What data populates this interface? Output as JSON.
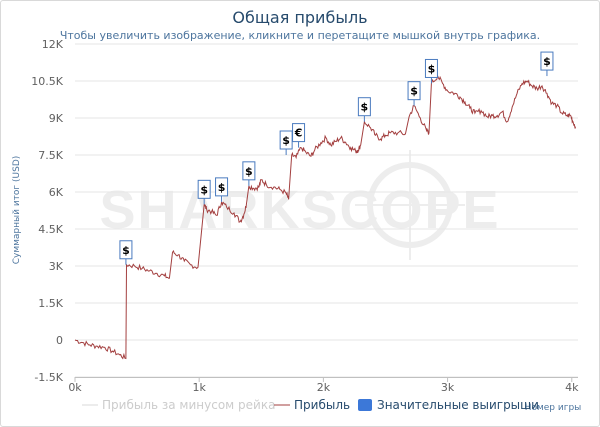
{
  "title": "Общая прибыль",
  "subtitle": "Чтобы увеличить изображение, кликните и перетащите мышкой внутрь графика.",
  "watermark": "SHARKSCOPE",
  "colors": {
    "profit": "#a33f3f",
    "rake": "#d9d9d9",
    "wins": "#3c78d8",
    "grid": "#e6e6e6",
    "axis": "#c0c0c0",
    "marker_border": "#4a7bbf"
  },
  "chart_data": {
    "type": "line",
    "title": "Общая прибыль",
    "xlabel": "Номер игры",
    "ylabel": "Суммарный итог (USD)",
    "xlim": [
      0,
      4050
    ],
    "ylim": [
      -1500,
      12000
    ],
    "x_ticks": [
      {
        "value": 0,
        "label": "0k"
      },
      {
        "value": 1000,
        "label": "1k"
      },
      {
        "value": 2000,
        "label": "2k"
      },
      {
        "value": 3000,
        "label": "3k"
      },
      {
        "value": 4000,
        "label": "4k"
      }
    ],
    "y_ticks": [
      {
        "value": -1500,
        "label": "-1.5K"
      },
      {
        "value": 0,
        "label": "0"
      },
      {
        "value": 1500,
        "label": "1.5K"
      },
      {
        "value": 3000,
        "label": "3K"
      },
      {
        "value": 4500,
        "label": "4.5K"
      },
      {
        "value": 6000,
        "label": "6K"
      },
      {
        "value": 7500,
        "label": "7.5K"
      },
      {
        "value": 9000,
        "label": "9K"
      },
      {
        "value": 10500,
        "label": "10.5K"
      },
      {
        "value": 12000,
        "label": "12K"
      }
    ],
    "grid": "horizontal",
    "legend_position": "bottom",
    "series": [
      {
        "name": "Прибыль",
        "points": [
          [
            0,
            0
          ],
          [
            60,
            -100
          ],
          [
            120,
            -200
          ],
          [
            180,
            -250
          ],
          [
            240,
            -300
          ],
          [
            300,
            -450
          ],
          [
            360,
            -600
          ],
          [
            410,
            -750
          ],
          [
            415,
            3050
          ],
          [
            480,
            3000
          ],
          [
            540,
            2900
          ],
          [
            600,
            2800
          ],
          [
            660,
            2700
          ],
          [
            720,
            2600
          ],
          [
            760,
            2500
          ],
          [
            785,
            3550
          ],
          [
            830,
            3450
          ],
          [
            880,
            3200
          ],
          [
            930,
            3050
          ],
          [
            990,
            2950
          ],
          [
            1040,
            5500
          ],
          [
            1060,
            5300
          ],
          [
            1100,
            5200
          ],
          [
            1140,
            5050
          ],
          [
            1180,
            5600
          ],
          [
            1220,
            5400
          ],
          [
            1280,
            5150
          ],
          [
            1330,
            4800
          ],
          [
            1360,
            5100
          ],
          [
            1380,
            5500
          ],
          [
            1400,
            6250
          ],
          [
            1440,
            6150
          ],
          [
            1480,
            6200
          ],
          [
            1500,
            6500
          ],
          [
            1540,
            6300
          ],
          [
            1600,
            6200
          ],
          [
            1650,
            6100
          ],
          [
            1700,
            5950
          ],
          [
            1720,
            5700
          ],
          [
            1745,
            7500
          ],
          [
            1780,
            7400
          ],
          [
            1820,
            7800
          ],
          [
            1860,
            7600
          ],
          [
            1900,
            7450
          ],
          [
            1930,
            7700
          ],
          [
            1980,
            8000
          ],
          [
            2020,
            8200
          ],
          [
            2060,
            7900
          ],
          [
            2100,
            8050
          ],
          [
            2140,
            8200
          ],
          [
            2180,
            8000
          ],
          [
            2220,
            7800
          ],
          [
            2260,
            7650
          ],
          [
            2280,
            7700
          ],
          [
            2300,
            7900
          ],
          [
            2330,
            8850
          ],
          [
            2380,
            8600
          ],
          [
            2420,
            8300
          ],
          [
            2460,
            8150
          ],
          [
            2500,
            8300
          ],
          [
            2540,
            8400
          ],
          [
            2600,
            8400
          ],
          [
            2660,
            8350
          ],
          [
            2690,
            9050
          ],
          [
            2730,
            9500
          ],
          [
            2780,
            9000
          ],
          [
            2830,
            8500
          ],
          [
            2850,
            8400
          ],
          [
            2870,
            10400
          ],
          [
            2920,
            10700
          ],
          [
            2960,
            10400
          ],
          [
            3000,
            10100
          ],
          [
            3060,
            10000
          ],
          [
            3100,
            9850
          ],
          [
            3140,
            9650
          ],
          [
            3180,
            9400
          ],
          [
            3220,
            9200
          ],
          [
            3270,
            9300
          ],
          [
            3320,
            9050
          ],
          [
            3360,
            9100
          ],
          [
            3400,
            9100
          ],
          [
            3440,
            9250
          ],
          [
            3480,
            8850
          ],
          [
            3520,
            9450
          ],
          [
            3560,
            10000
          ],
          [
            3600,
            10400
          ],
          [
            3640,
            10500
          ],
          [
            3680,
            10300
          ],
          [
            3720,
            10200
          ],
          [
            3760,
            10300
          ],
          [
            3800,
            10000
          ],
          [
            3840,
            9600
          ],
          [
            3880,
            9500
          ],
          [
            3920,
            9200
          ],
          [
            3960,
            9100
          ],
          [
            3990,
            9100
          ],
          [
            4010,
            8850
          ],
          [
            4030,
            8650
          ]
        ]
      }
    ],
    "markers": [
      {
        "x": 410,
        "y": 3050,
        "symbol": "$"
      },
      {
        "x": 1040,
        "y": 5500,
        "symbol": "$"
      },
      {
        "x": 1180,
        "y": 5600,
        "symbol": "$"
      },
      {
        "x": 1400,
        "y": 6250,
        "symbol": "$"
      },
      {
        "x": 1700,
        "y": 7500,
        "symbol": "$"
      },
      {
        "x": 1800,
        "y": 7800,
        "symbol": "€"
      },
      {
        "x": 2330,
        "y": 8850,
        "symbol": "$"
      },
      {
        "x": 2730,
        "y": 9500,
        "symbol": "$"
      },
      {
        "x": 2870,
        "y": 10400,
        "symbol": "$"
      },
      {
        "x": 3800,
        "y": 10700,
        "symbol": "$"
      }
    ]
  },
  "legend": {
    "rake_label": "Прибыль за минусом рейка",
    "profit_label": "Прибыль",
    "wins_label": "Значительные выигрыши"
  }
}
